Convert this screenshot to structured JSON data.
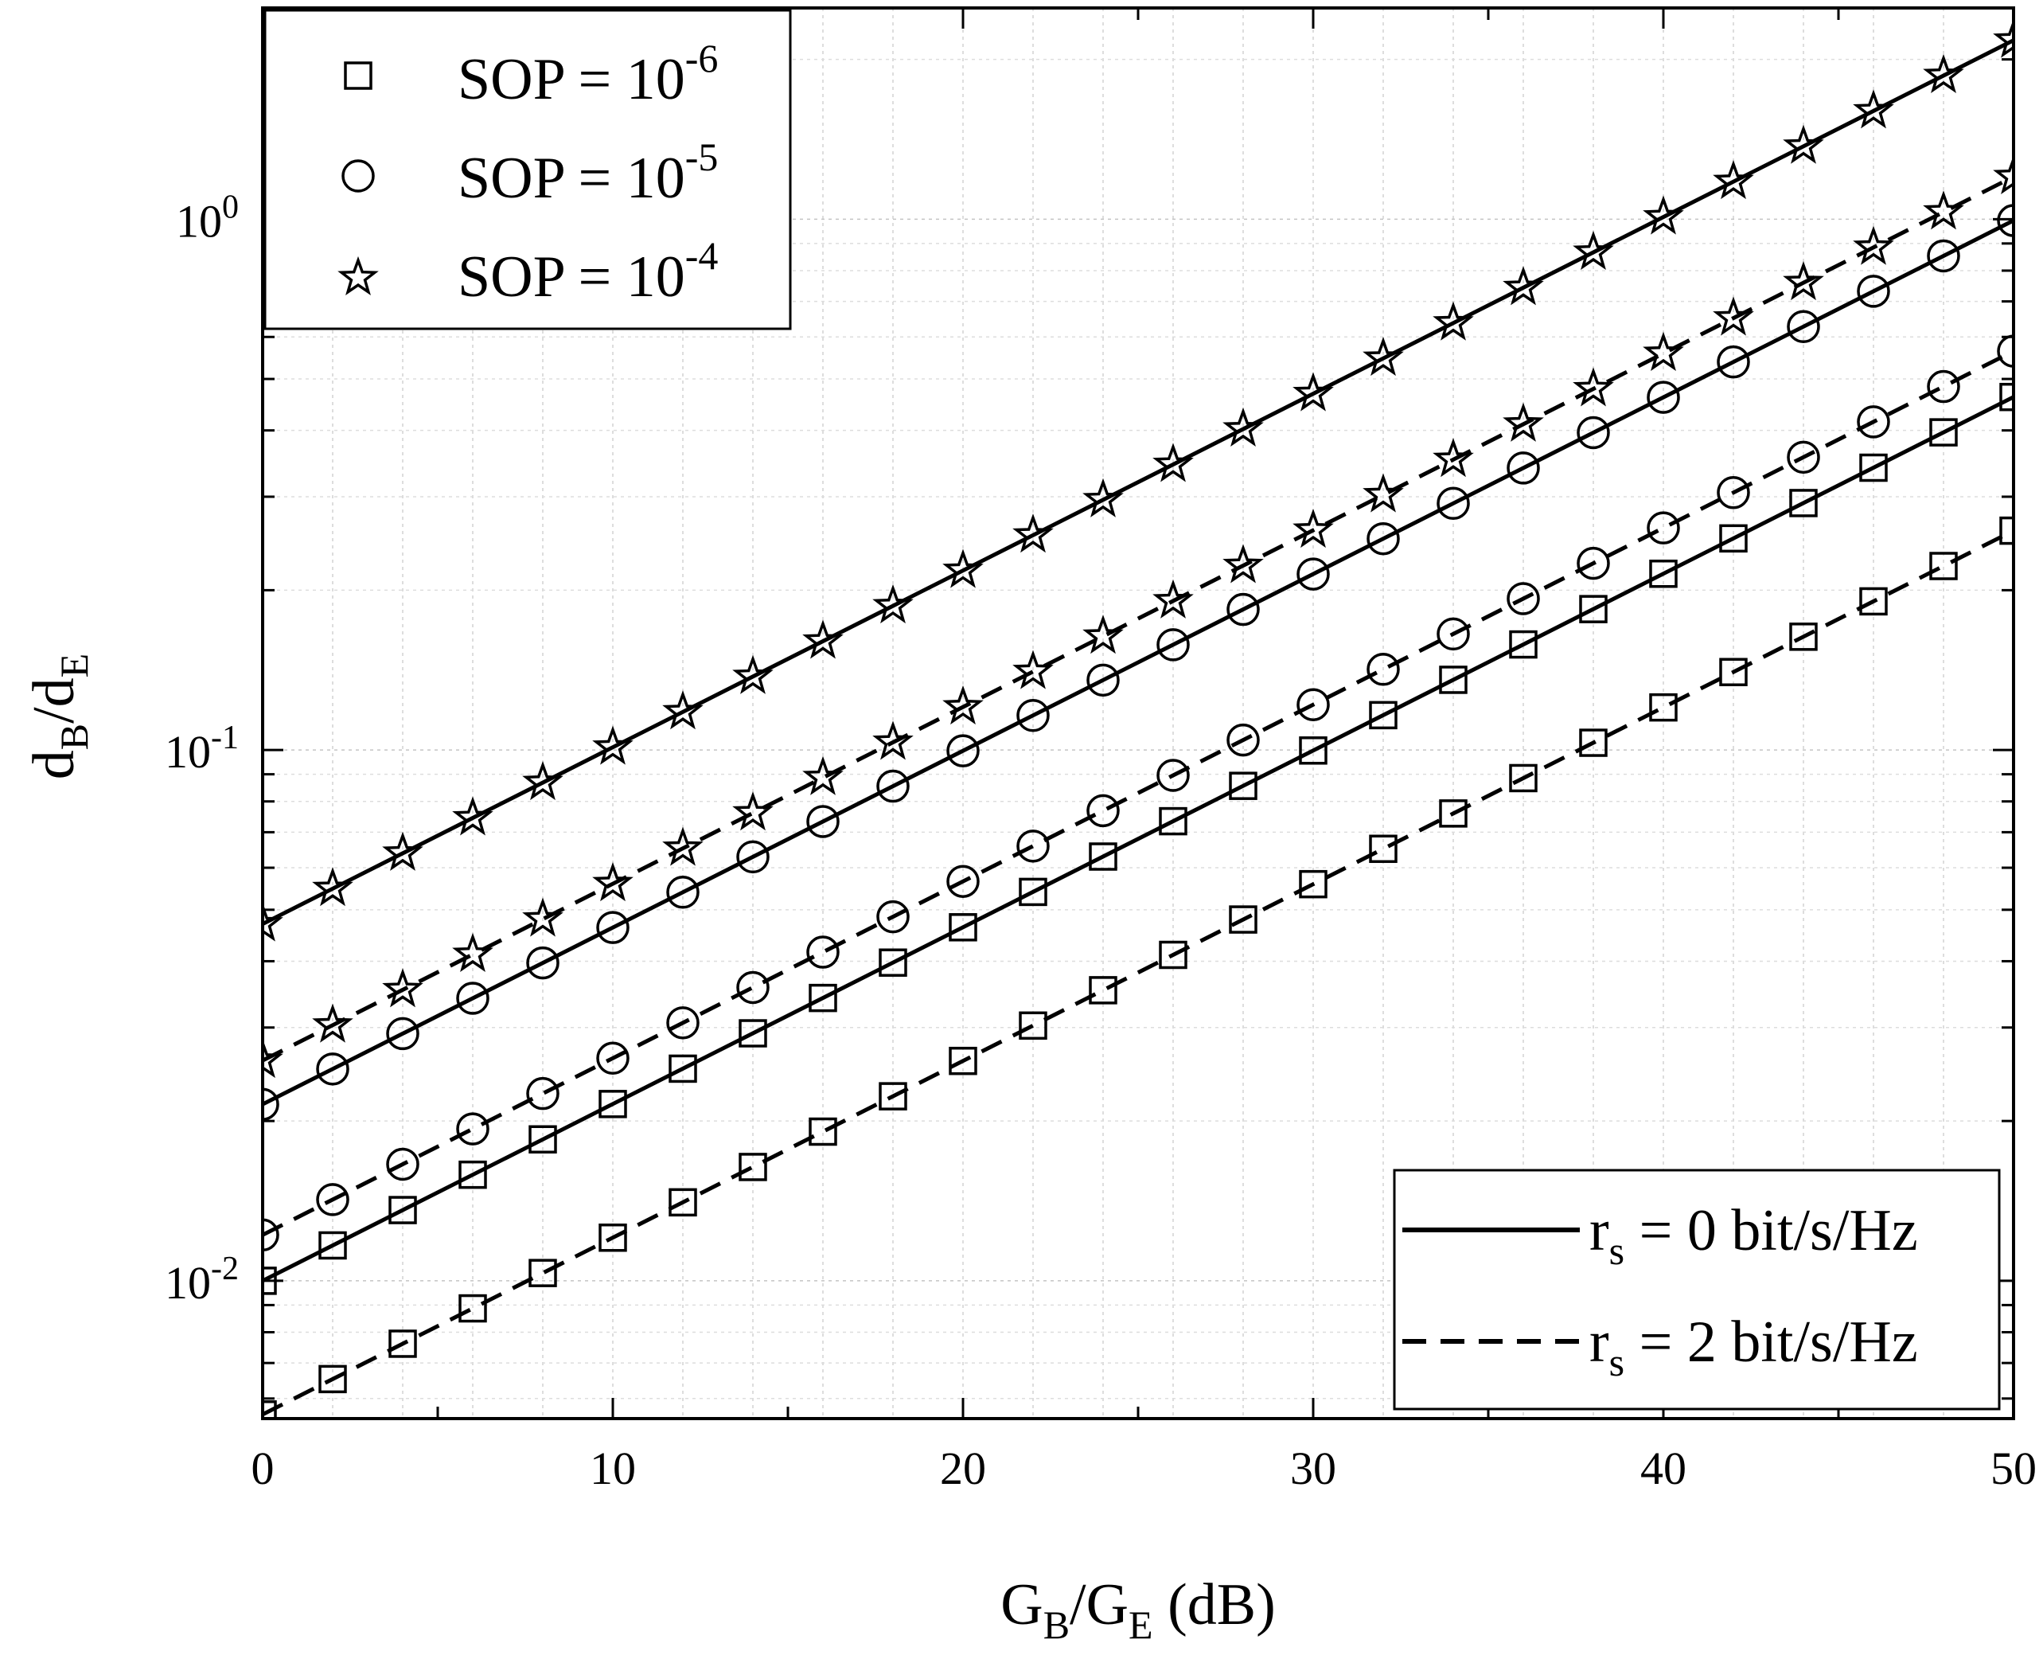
{
  "chart_data": {
    "type": "line",
    "title": "",
    "xlabel": {
      "main": "G",
      "sub1": "B",
      "slash": "/G",
      "sub2": "E",
      "tail": " (dB)"
    },
    "ylabel": {
      "main": "d",
      "sub1": "B",
      "slash": "/d",
      "sub2": "E"
    },
    "xlim": [
      0,
      50
    ],
    "ylim": [
      0.0055,
      2.5
    ],
    "yscale": "log",
    "grid": true,
    "x_ticks": [
      {
        "value": 0,
        "label": "0"
      },
      {
        "value": 10,
        "label": "10"
      },
      {
        "value": 20,
        "label": "20"
      },
      {
        "value": 30,
        "label": "30"
      },
      {
        "value": 40,
        "label": "40"
      },
      {
        "value": 50,
        "label": "50"
      }
    ],
    "y_ticks": [
      {
        "value": 0.01,
        "base": "10",
        "exp": "-2"
      },
      {
        "value": 0.1,
        "base": "10",
        "exp": "-1"
      },
      {
        "value": 1,
        "base": "10",
        "exp": "0"
      }
    ],
    "marker_x": [
      0,
      2,
      4,
      6,
      8,
      10,
      12,
      14,
      16,
      18,
      20,
      22,
      24,
      26,
      28,
      30,
      32,
      34,
      36,
      38,
      40,
      42,
      44,
      46,
      48,
      50
    ],
    "series": [
      {
        "name": "SOP = 10^-4, r_s = 0 bit/s/Hz",
        "marker": "star",
        "line": "solid",
        "y_at_0": 0.047,
        "decade_per_dB": 0.0333
      },
      {
        "name": "SOP = 10^-4, r_s = 2 bit/s/Hz",
        "marker": "star",
        "line": "dashed",
        "y_at_0": 0.026,
        "decade_per_dB": 0.0333
      },
      {
        "name": "SOP = 10^-5, r_s = 0 bit/s/Hz",
        "marker": "circle",
        "line": "solid",
        "y_at_0": 0.0215,
        "decade_per_dB": 0.0333
      },
      {
        "name": "SOP = 10^-5, r_s = 2 bit/s/Hz",
        "marker": "circle",
        "line": "dashed",
        "y_at_0": 0.0122,
        "decade_per_dB": 0.0333
      },
      {
        "name": "SOP = 10^-6, r_s = 0 bit/s/Hz",
        "marker": "square",
        "line": "solid",
        "y_at_0": 0.01,
        "decade_per_dB": 0.0333
      },
      {
        "name": "SOP = 10^-6, r_s = 2 bit/s/Hz",
        "marker": "square",
        "line": "dashed",
        "y_at_0": 0.0056,
        "decade_per_dB": 0.0333
      }
    ],
    "legend_markers": {
      "position": "top-left",
      "entries": [
        {
          "marker": "square",
          "label": "SOP = 10",
          "exp": "-6"
        },
        {
          "marker": "circle",
          "label": "SOP = 10",
          "exp": "-5"
        },
        {
          "marker": "star",
          "label": "SOP = 10",
          "exp": "-4"
        }
      ]
    },
    "legend_lines": {
      "position": "bottom-right",
      "entries": [
        {
          "line": "solid",
          "pre": "r",
          "sub": "s",
          "label": " = 0 bit/s/Hz"
        },
        {
          "line": "dashed",
          "pre": "r",
          "sub": "s",
          "label": " = 2 bit/s/Hz"
        }
      ]
    }
  }
}
